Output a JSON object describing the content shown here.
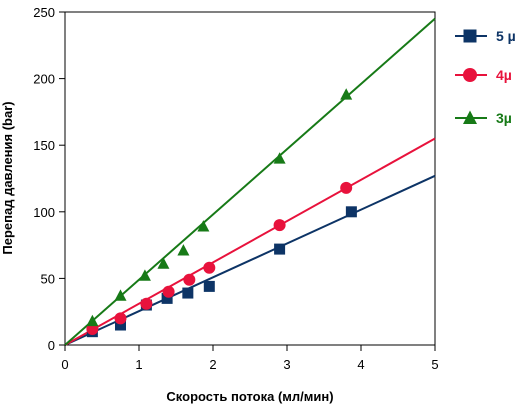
{
  "chart_data": {
    "type": "scatter",
    "xlabel": "Скорость потока (мл/мин)",
    "ylabel": "Перепад давления (bar)",
    "xlim": [
      0,
      5
    ],
    "ylim": [
      0,
      250
    ],
    "xticks": [
      0,
      1,
      2,
      3,
      4,
      5
    ],
    "yticks": [
      0,
      50,
      100,
      150,
      200,
      250
    ],
    "grid": false,
    "legend_position": "right",
    "series": [
      {
        "name": "5 µ",
        "color": "#0d3466",
        "marker": "square",
        "x": [
          0.37,
          0.75,
          1.1,
          1.38,
          1.66,
          1.95,
          2.9,
          3.87
        ],
        "y": [
          10,
          15,
          30,
          35,
          39,
          44,
          72,
          100
        ],
        "fit_line": {
          "x": [
            0,
            5
          ],
          "y": [
            0,
            127
          ]
        }
      },
      {
        "name": "4µ",
        "color": "#e8123c",
        "marker": "circle",
        "x": [
          0.37,
          0.75,
          1.1,
          1.4,
          1.68,
          1.95,
          2.9,
          3.8
        ],
        "y": [
          12,
          20,
          31,
          40,
          49,
          58,
          90,
          118
        ],
        "fit_line": {
          "x": [
            0,
            5
          ],
          "y": [
            0,
            155
          ]
        }
      },
      {
        "name": "3µ",
        "color": "#177a17",
        "marker": "triangle",
        "x": [
          0.37,
          0.75,
          1.08,
          1.33,
          1.6,
          1.87,
          2.9,
          3.8
        ],
        "y": [
          18,
          37,
          52,
          61,
          71,
          89,
          140,
          188
        ],
        "fit_line": {
          "x": [
            0,
            5
          ],
          "y": [
            0,
            245
          ]
        }
      }
    ]
  }
}
